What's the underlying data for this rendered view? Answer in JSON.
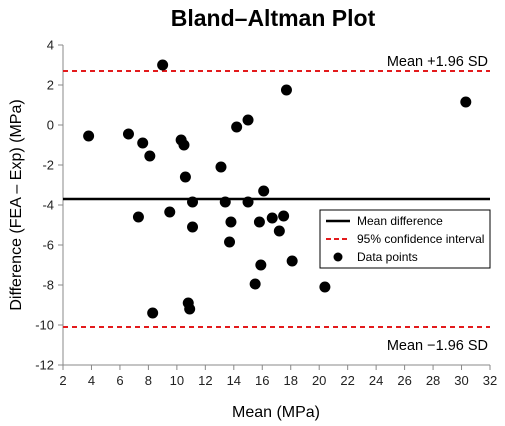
{
  "chart_data": {
    "type": "scatter",
    "title": "Bland–Altman Plot",
    "xlabel": "Mean (MPa)",
    "ylabel": "Difference (FEA – Exp) (MPa)",
    "xlim": [
      2,
      32
    ],
    "ylim": [
      -12,
      4
    ],
    "x_ticks": [
      "2",
      "4",
      "6",
      "8",
      "10",
      "12",
      "14",
      "16",
      "18",
      "20",
      "22",
      "24",
      "26",
      "28",
      "30",
      "32"
    ],
    "y_ticks": [
      "4",
      "2",
      "0",
      "-2",
      "-4",
      "-6",
      "-8",
      "-10",
      "-12"
    ],
    "grid": false,
    "legend_position": "right",
    "mean_difference": -3.7,
    "upper_loa": 2.7,
    "lower_loa": -10.1,
    "annotations": {
      "upper": "Mean +1.96 SD",
      "lower": "Mean −1.96 SD"
    },
    "legend": [
      {
        "label": "Mean difference",
        "style": "solid",
        "color": "#000000"
      },
      {
        "label": "95% confidence interval",
        "style": "dashed",
        "color": "#e31a1c"
      },
      {
        "label": "Data points",
        "style": "marker",
        "color": "#000000"
      }
    ],
    "points": [
      {
        "x": 3.8,
        "y": -0.55
      },
      {
        "x": 6.6,
        "y": -0.45
      },
      {
        "x": 7.6,
        "y": -0.9
      },
      {
        "x": 8.1,
        "y": -1.55
      },
      {
        "x": 7.3,
        "y": -4.6
      },
      {
        "x": 8.3,
        "y": -9.4
      },
      {
        "x": 9.0,
        "y": 3.0
      },
      {
        "x": 9.5,
        "y": -4.35
      },
      {
        "x": 10.3,
        "y": -0.75
      },
      {
        "x": 10.5,
        "y": -1.0
      },
      {
        "x": 10.6,
        "y": -2.6
      },
      {
        "x": 10.8,
        "y": -8.9
      },
      {
        "x": 10.9,
        "y": -9.2
      },
      {
        "x": 11.1,
        "y": -3.85
      },
      {
        "x": 11.1,
        "y": -5.1
      },
      {
        "x": 13.1,
        "y": -2.1
      },
      {
        "x": 13.4,
        "y": -3.85
      },
      {
        "x": 13.7,
        "y": -5.85
      },
      {
        "x": 13.8,
        "y": -4.85
      },
      {
        "x": 14.2,
        "y": -0.1
      },
      {
        "x": 15.0,
        "y": 0.25
      },
      {
        "x": 15.0,
        "y": -3.85
      },
      {
        "x": 15.5,
        "y": -7.95
      },
      {
        "x": 15.8,
        "y": -4.85
      },
      {
        "x": 15.9,
        "y": -7.0
      },
      {
        "x": 16.1,
        "y": -3.3
      },
      {
        "x": 16.7,
        "y": -4.65
      },
      {
        "x": 17.2,
        "y": -5.3
      },
      {
        "x": 17.5,
        "y": -4.55
      },
      {
        "x": 17.7,
        "y": 1.75
      },
      {
        "x": 18.1,
        "y": -6.8
      },
      {
        "x": 20.4,
        "y": -8.1
      },
      {
        "x": 30.3,
        "y": 1.15
      }
    ],
    "colors": {
      "mean_line": "#000000",
      "limit_lines": "#e31a1c",
      "points": "#000000",
      "axis": "#888888"
    }
  }
}
